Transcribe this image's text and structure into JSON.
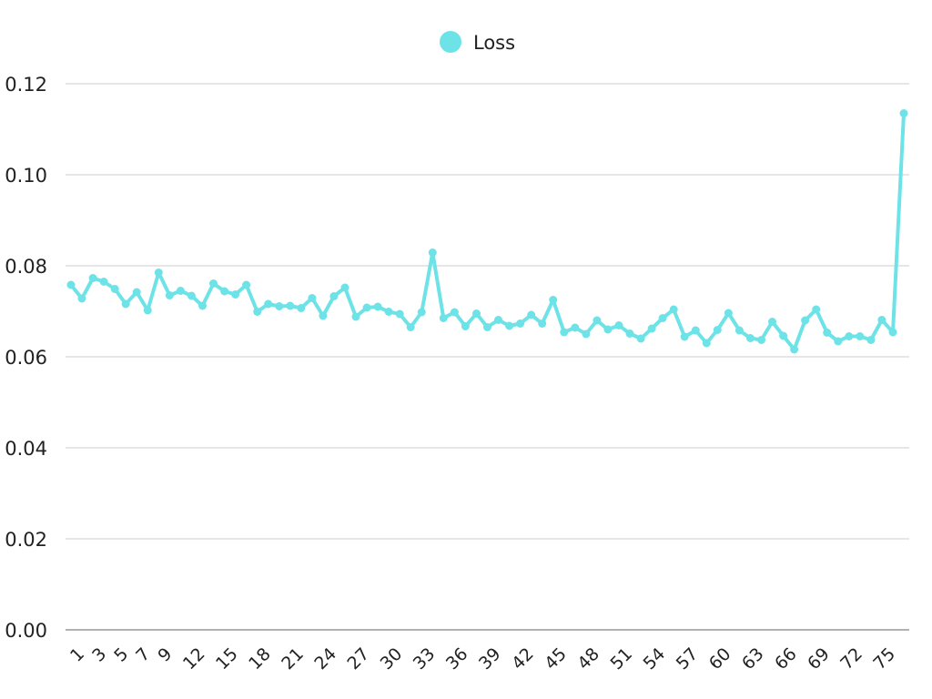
{
  "chart_data": {
    "type": "line",
    "title": "",
    "xlabel": "",
    "ylabel": "",
    "legend_position": "top-center",
    "grid": true,
    "ylim": [
      0,
      0.12
    ],
    "y_ticks": [
      "0.00",
      "0.02",
      "0.04",
      "0.06",
      "0.08",
      "0.10",
      "0.12"
    ],
    "x_tick_labels": [
      "1",
      "3",
      "5",
      "7",
      "9",
      "12",
      "15",
      "18",
      "21",
      "24",
      "27",
      "30",
      "33",
      "36",
      "39",
      "42",
      "45",
      "48",
      "51",
      "54",
      "57",
      "60",
      "63",
      "66",
      "69",
      "72",
      "75"
    ],
    "x": [
      1,
      2,
      3,
      4,
      5,
      6,
      7,
      8,
      9,
      10,
      11,
      12,
      13,
      14,
      15,
      16,
      17,
      18,
      19,
      20,
      21,
      22,
      23,
      24,
      25,
      26,
      27,
      28,
      29,
      30,
      31,
      32,
      33,
      34,
      35,
      36,
      37,
      38,
      39,
      40,
      41,
      42,
      43,
      44,
      45,
      46,
      47,
      48,
      49,
      50,
      51,
      52,
      53,
      54,
      55,
      56,
      57,
      58,
      59,
      60,
      61,
      62,
      63,
      64,
      65,
      66,
      67,
      68,
      69,
      70,
      71,
      72,
      73,
      74,
      75,
      76,
      77
    ],
    "series": [
      {
        "name": "Loss",
        "color": "#6de3e8",
        "values": [
          0.0758,
          0.0728,
          0.0773,
          0.0765,
          0.0749,
          0.0716,
          0.0742,
          0.0702,
          0.0785,
          0.0735,
          0.0745,
          0.0734,
          0.0712,
          0.0761,
          0.0744,
          0.0737,
          0.0758,
          0.0699,
          0.0716,
          0.0711,
          0.0712,
          0.0707,
          0.0729,
          0.069,
          0.0733,
          0.0752,
          0.0688,
          0.0708,
          0.071,
          0.0699,
          0.0694,
          0.0665,
          0.0698,
          0.0829,
          0.0685,
          0.0698,
          0.0667,
          0.0695,
          0.0665,
          0.0681,
          0.0668,
          0.0673,
          0.0692,
          0.0673,
          0.0725,
          0.0654,
          0.0664,
          0.065,
          0.068,
          0.066,
          0.0669,
          0.0651,
          0.064,
          0.0662,
          0.0685,
          0.0704,
          0.0644,
          0.0658,
          0.063,
          0.0659,
          0.0696,
          0.0658,
          0.0641,
          0.0637,
          0.0677,
          0.0646,
          0.0616,
          0.068,
          0.0704,
          0.0653,
          0.0634,
          0.0645,
          0.0645,
          0.0637,
          0.0681,
          0.0654,
          0.1135
        ]
      }
    ]
  }
}
